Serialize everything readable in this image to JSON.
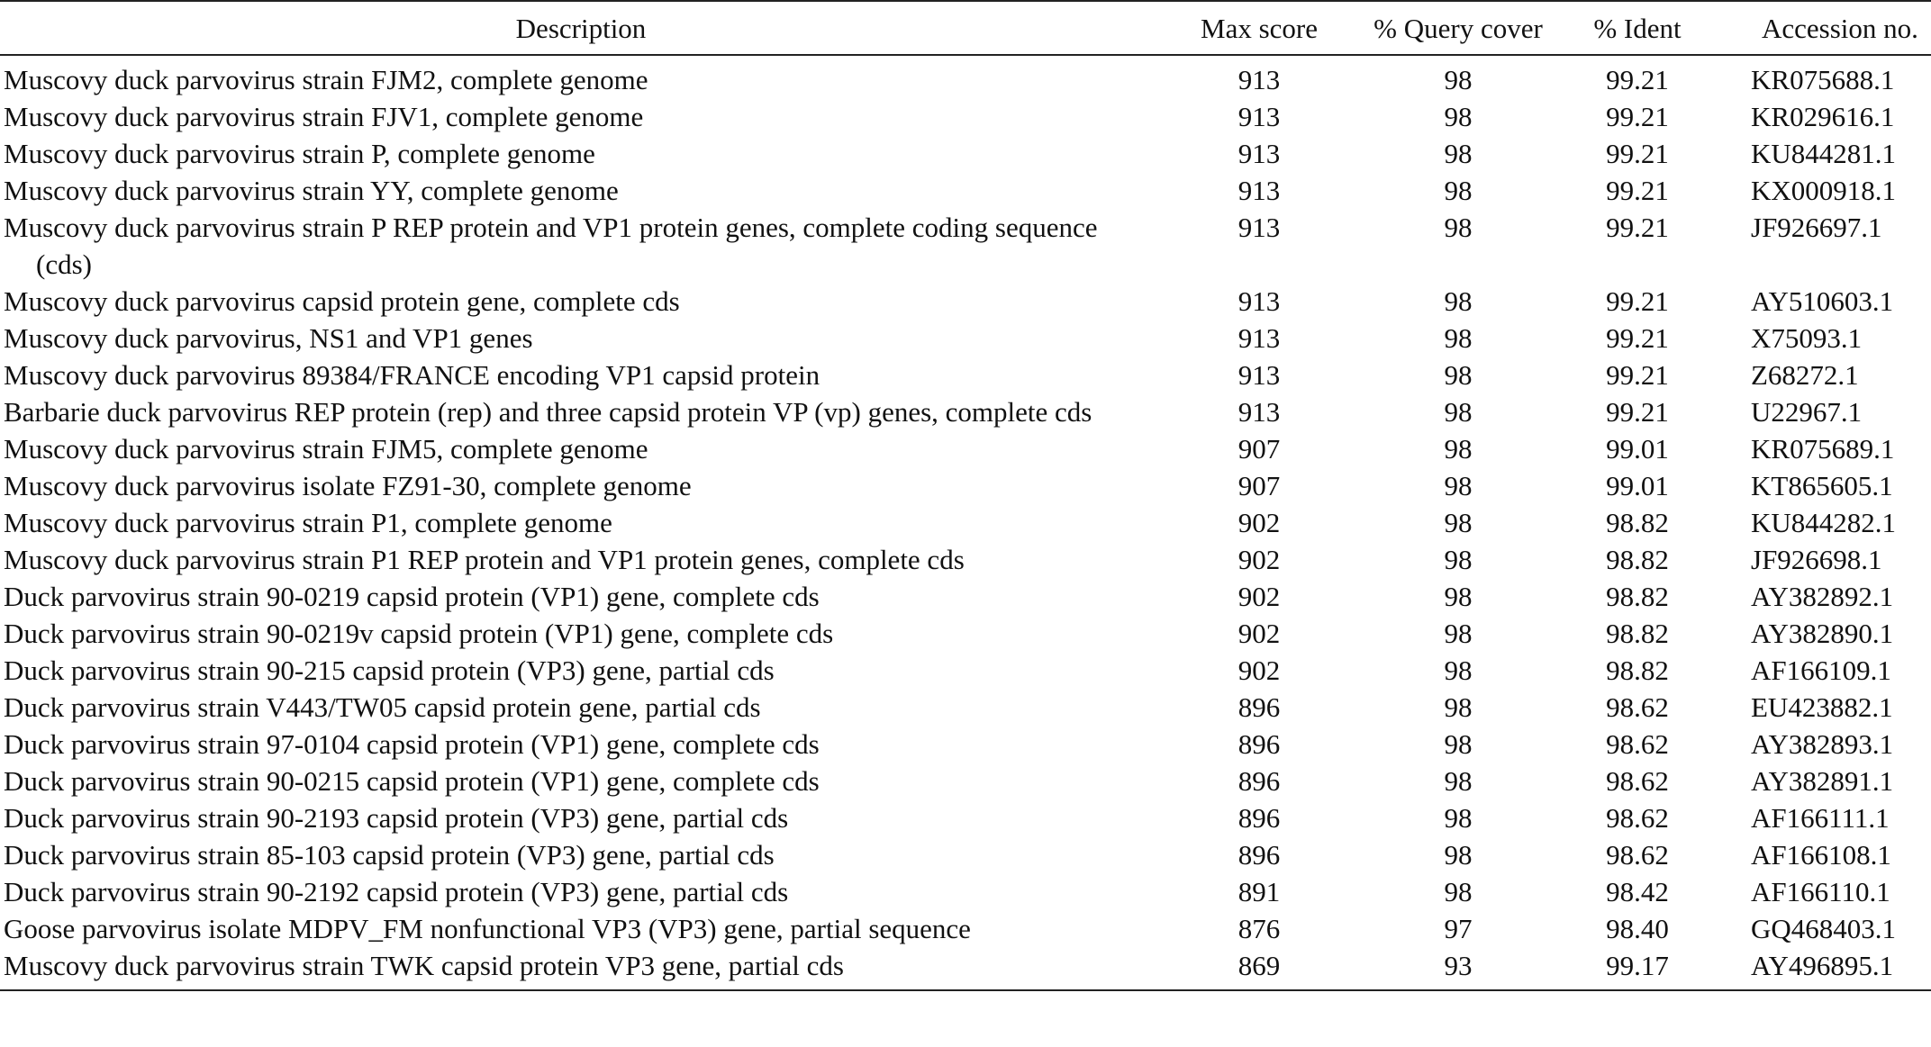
{
  "table": {
    "headers": {
      "description": "Description",
      "max_score": "Max score",
      "query_cover": "% Query cover",
      "ident": "% Ident",
      "accession": "Accession no."
    },
    "rows": [
      {
        "description": "Muscovy duck parvovirus strain FJM2, complete genome",
        "max_score": "913",
        "query_cover": "98",
        "ident": "99.21",
        "accession": "KR075688.1"
      },
      {
        "description": "Muscovy duck parvovirus strain FJV1, complete genome",
        "max_score": "913",
        "query_cover": "98",
        "ident": "99.21",
        "accession": "KR029616.1"
      },
      {
        "description": "Muscovy duck parvovirus strain P, complete genome",
        "max_score": "913",
        "query_cover": "98",
        "ident": "99.21",
        "accession": "KU844281.1"
      },
      {
        "description": "Muscovy duck parvovirus strain YY, complete genome",
        "max_score": "913",
        "query_cover": "98",
        "ident": "99.21",
        "accession": "KX000918.1"
      },
      {
        "description": "Muscovy duck parvovirus strain P REP protein and VP1 protein genes, complete coding sequence (cds)",
        "max_score": "913",
        "query_cover": "98",
        "ident": "99.21",
        "accession": "JF926697.1"
      },
      {
        "description": "Muscovy duck parvovirus capsid protein gene, complete cds",
        "max_score": "913",
        "query_cover": "98",
        "ident": "99.21",
        "accession": "AY510603.1"
      },
      {
        "description": "Muscovy duck parvovirus, NS1 and VP1 genes",
        "max_score": "913",
        "query_cover": "98",
        "ident": "99.21",
        "accession": "X75093.1"
      },
      {
        "description": "Muscovy duck parvovirus 89384/FRANCE encoding VP1 capsid protein",
        "max_score": "913",
        "query_cover": "98",
        "ident": "99.21",
        "accession": "Z68272.1"
      },
      {
        "description": "Barbarie duck parvovirus REP protein (rep) and three capsid protein VP (vp) genes, complete cds",
        "max_score": "913",
        "query_cover": "98",
        "ident": "99.21",
        "accession": "U22967.1"
      },
      {
        "description": "Muscovy duck parvovirus strain FJM5, complete genome",
        "max_score": "907",
        "query_cover": "98",
        "ident": "99.01",
        "accession": "KR075689.1"
      },
      {
        "description": "Muscovy duck parvovirus isolate FZ91-30, complete genome",
        "max_score": "907",
        "query_cover": "98",
        "ident": "99.01",
        "accession": "KT865605.1"
      },
      {
        "description": "Muscovy duck parvovirus strain P1, complete genome",
        "max_score": "902",
        "query_cover": "98",
        "ident": "98.82",
        "accession": "KU844282.1"
      },
      {
        "description": "Muscovy duck parvovirus strain P1 REP protein and VP1 protein genes, complete cds",
        "max_score": "902",
        "query_cover": "98",
        "ident": "98.82",
        "accession": "JF926698.1"
      },
      {
        "description": "Duck parvovirus strain 90-0219 capsid protein (VP1) gene, complete cds",
        "max_score": "902",
        "query_cover": "98",
        "ident": "98.82",
        "accession": "AY382892.1"
      },
      {
        "description": "Duck parvovirus strain 90-0219v capsid protein (VP1) gene, complete cds",
        "max_score": "902",
        "query_cover": "98",
        "ident": "98.82",
        "accession": "AY382890.1"
      },
      {
        "description": "Duck parvovirus strain 90-215 capsid protein (VP3) gene, partial cds",
        "max_score": "902",
        "query_cover": "98",
        "ident": "98.82",
        "accession": "AF166109.1"
      },
      {
        "description": "Duck parvovirus strain V443/TW05 capsid protein gene, partial cds",
        "max_score": "896",
        "query_cover": "98",
        "ident": "98.62",
        "accession": "EU423882.1"
      },
      {
        "description": "Duck parvovirus strain 97-0104 capsid protein (VP1) gene, complete cds",
        "max_score": "896",
        "query_cover": "98",
        "ident": "98.62",
        "accession": "AY382893.1"
      },
      {
        "description": "Duck parvovirus strain 90-0215 capsid protein (VP1) gene, complete cds",
        "max_score": "896",
        "query_cover": "98",
        "ident": "98.62",
        "accession": "AY382891.1"
      },
      {
        "description": "Duck parvovirus strain 90-2193 capsid protein (VP3) gene, partial cds",
        "max_score": "896",
        "query_cover": "98",
        "ident": "98.62",
        "accession": "AF166111.1"
      },
      {
        "description": "Duck parvovirus strain 85-103 capsid protein (VP3) gene, partial cds",
        "max_score": "896",
        "query_cover": "98",
        "ident": "98.62",
        "accession": "AF166108.1"
      },
      {
        "description": "Duck parvovirus strain 90-2192 capsid protein (VP3) gene, partial cds",
        "max_score": "891",
        "query_cover": "98",
        "ident": "98.42",
        "accession": "AF166110.1"
      },
      {
        "description": "Goose parvovirus isolate MDPV_FM nonfunctional VP3 (VP3) gene, partial sequence",
        "max_score": "876",
        "query_cover": "97",
        "ident": "98.40",
        "accession": "GQ468403.1"
      },
      {
        "description": "Muscovy duck parvovirus strain TWK capsid protein VP3 gene, partial cds",
        "max_score": "869",
        "query_cover": "93",
        "ident": "99.17",
        "accession": "AY496895.1"
      }
    ]
  }
}
